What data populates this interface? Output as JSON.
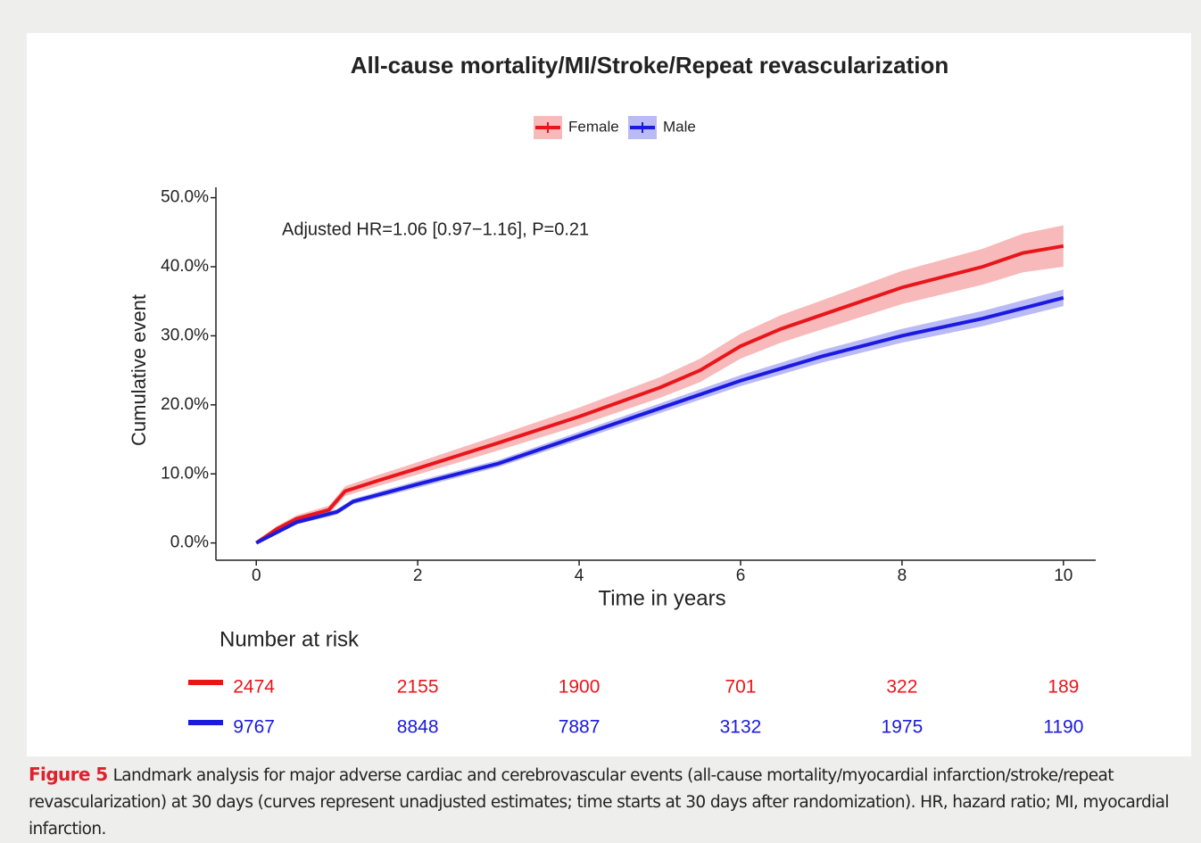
{
  "chart_data": {
    "type": "line",
    "title": "All-cause mortality/MI/Stroke/Repeat revascularization",
    "annotation": "Adjusted HR=1.06 [0.97−1.16], P=0.21",
    "x_label": "Time in years",
    "y_label": "Cumulative event",
    "legend": "top",
    "xlim": [
      -0.5,
      10.4
    ],
    "xticks": [
      0,
      2,
      4,
      6,
      8,
      10
    ],
    "ylim": [
      -2.5,
      51.5
    ],
    "yticks": [
      {
        "value": 0,
        "label": "0.0%"
      },
      {
        "value": 10,
        "label": "10.0%"
      },
      {
        "value": 20,
        "label": "20.0%"
      },
      {
        "value": 30,
        "label": "30.0%"
      },
      {
        "value": 40,
        "label": "40.0%"
      },
      {
        "value": 50,
        "label": "50.0%"
      }
    ],
    "series": [
      {
        "name": "Female",
        "color": "#e8161b",
        "x": [
          0,
          0.25,
          0.5,
          0.9,
          1.1,
          1.5,
          2,
          3,
          4,
          5,
          5.5,
          6,
          6.5,
          7,
          8,
          9,
          9.5,
          10
        ],
        "values": [
          0,
          2,
          3.5,
          4.8,
          7.5,
          9,
          10.8,
          14.5,
          18.3,
          22.5,
          25,
          28.5,
          31,
          33,
          37,
          40,
          42,
          43
        ],
        "ci_lower": [
          0,
          1.6,
          3,
          4.2,
          6.8,
          8.2,
          9.9,
          13.4,
          17,
          21,
          23.3,
          26.7,
          29,
          30.9,
          34.6,
          37.4,
          39.2,
          40
        ],
        "ci_upper": [
          0,
          2.4,
          4,
          5.4,
          8.2,
          9.8,
          11.7,
          15.6,
          19.6,
          24,
          26.7,
          30.3,
          33,
          35.1,
          39.4,
          42.6,
          44.8,
          46
        ]
      },
      {
        "name": "Male",
        "color": "#1a1ae0",
        "x": [
          0,
          0.5,
          1,
          1.2,
          2,
          3,
          4,
          5,
          6,
          7,
          8,
          9,
          10
        ],
        "values": [
          0,
          3,
          4.5,
          6,
          8.5,
          11.5,
          15.5,
          19.5,
          23.5,
          27,
          30,
          32.5,
          35.5
        ],
        "ci_lower": [
          0,
          2.7,
          4.1,
          5.6,
          8,
          11,
          14.9,
          18.8,
          22.7,
          26.1,
          29,
          31.4,
          34.3
        ],
        "ci_upper": [
          0,
          3.3,
          4.9,
          6.4,
          9,
          12,
          16.1,
          20.2,
          24.3,
          27.9,
          31,
          33.6,
          36.7
        ]
      }
    ],
    "risk_table": {
      "title": "Number at risk",
      "rows": [
        [
          2474,
          2155,
          1900,
          701,
          322,
          189
        ],
        [
          9767,
          8848,
          7887,
          3132,
          1975,
          1190
        ]
      ]
    }
  },
  "caption": {
    "label": "Figure 5",
    "text": "Landmark analysis for major adverse cardiac and cerebrovascular events (all-cause mortality/myocardial infarction/stroke/repeat revascularization) at 30 days (curves represent unadjusted estimates; time starts at 30 days after randomization). HR, hazard ratio; MI, myocardial infarction."
  }
}
